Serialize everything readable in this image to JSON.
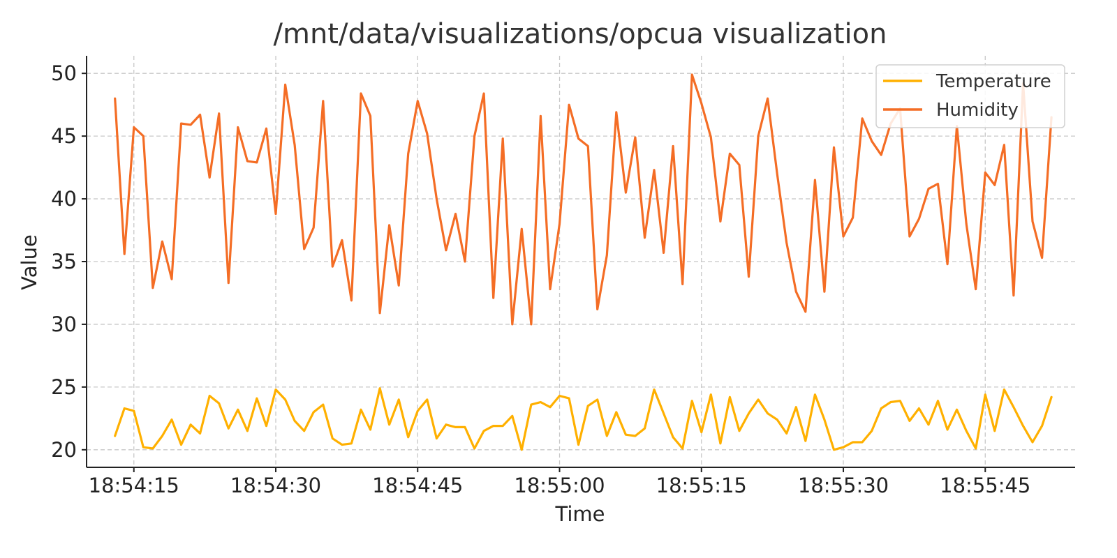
{
  "chart_data": {
    "type": "line",
    "title": "/mnt/data/visualizations/opcua visualization",
    "xlabel": "Time",
    "ylabel": "Value",
    "ylim": [
      18.6,
      51.4
    ],
    "x_range_seconds": [
      0,
      104.5
    ],
    "x_ticks": [
      {
        "label": "18:54:15",
        "t": 5
      },
      {
        "label": "18:54:30",
        "t": 20
      },
      {
        "label": "18:54:45",
        "t": 35
      },
      {
        "label": "18:55:00",
        "t": 50
      },
      {
        "label": "18:55:15",
        "t": 65
      },
      {
        "label": "18:55:30",
        "t": 80
      },
      {
        "label": "18:55:45",
        "t": 95
      }
    ],
    "y_ticks": [
      20,
      25,
      30,
      35,
      40,
      45,
      50
    ],
    "grid": true,
    "legend_position": "top-right",
    "series": [
      {
        "name": "Temperature",
        "color": "#ffb000",
        "values": [
          21.1,
          23.3,
          23.1,
          20.2,
          20.1,
          21.1,
          22.4,
          20.4,
          22.0,
          21.3,
          24.3,
          23.7,
          21.7,
          23.2,
          21.5,
          24.1,
          21.9,
          24.8,
          24.0,
          22.3,
          21.5,
          23.0,
          23.6,
          20.9,
          20.4,
          20.5,
          23.2,
          21.6,
          24.9,
          22.0,
          24.0,
          21.0,
          23.1,
          24.0,
          20.9,
          22.0,
          21.8,
          21.8,
          20.1,
          21.5,
          21.9,
          21.9,
          22.7,
          20.0,
          23.6,
          23.8,
          23.4,
          24.3,
          24.1,
          20.4,
          23.5,
          24.0,
          21.1,
          23.0,
          21.2,
          21.1,
          21.7,
          24.8,
          22.9,
          21.0,
          20.1,
          23.9,
          21.4,
          24.4,
          20.5,
          24.2,
          21.5,
          22.9,
          24.0,
          22.9,
          22.4,
          21.3,
          23.4,
          20.7,
          24.4,
          22.4,
          20.0,
          20.2,
          20.6,
          20.6,
          21.5,
          23.3,
          23.8,
          23.9,
          22.3,
          23.3,
          22.0,
          23.9,
          21.6,
          23.2,
          21.5,
          20.1,
          24.4,
          21.5,
          24.8,
          23.4,
          21.9,
          20.6,
          21.9,
          24.2
        ]
      },
      {
        "name": "Humidity",
        "color": "#f46d25",
        "values": [
          48.0,
          35.6,
          45.7,
          45.0,
          32.9,
          36.6,
          33.6,
          46.0,
          45.9,
          46.7,
          41.7,
          46.8,
          33.3,
          45.7,
          43.0,
          42.9,
          45.6,
          38.8,
          49.1,
          44.3,
          36.0,
          37.7,
          47.8,
          34.6,
          36.7,
          31.9,
          48.4,
          46.6,
          30.9,
          37.9,
          33.1,
          43.6,
          47.8,
          45.2,
          40.0,
          35.9,
          38.8,
          35.0,
          45.0,
          48.4,
          32.1,
          44.8,
          30.0,
          37.6,
          30.0,
          46.6,
          32.8,
          38.0,
          47.5,
          44.8,
          44.2,
          31.2,
          35.5,
          46.9,
          40.5,
          44.9,
          36.9,
          42.3,
          35.7,
          44.2,
          33.2,
          49.9,
          47.6,
          44.9,
          38.2,
          43.6,
          42.7,
          33.8,
          45.0,
          48.0,
          42.0,
          36.5,
          32.6,
          31.0,
          41.5,
          32.6,
          44.1,
          37.0,
          38.5,
          46.4,
          44.6,
          43.5,
          46.0,
          47.2,
          37.0,
          38.4,
          40.8,
          41.2,
          34.8,
          45.8,
          38.0,
          32.8,
          42.1,
          41.1,
          44.3,
          32.3,
          49.2,
          38.2,
          35.3,
          46.5
        ]
      }
    ]
  }
}
